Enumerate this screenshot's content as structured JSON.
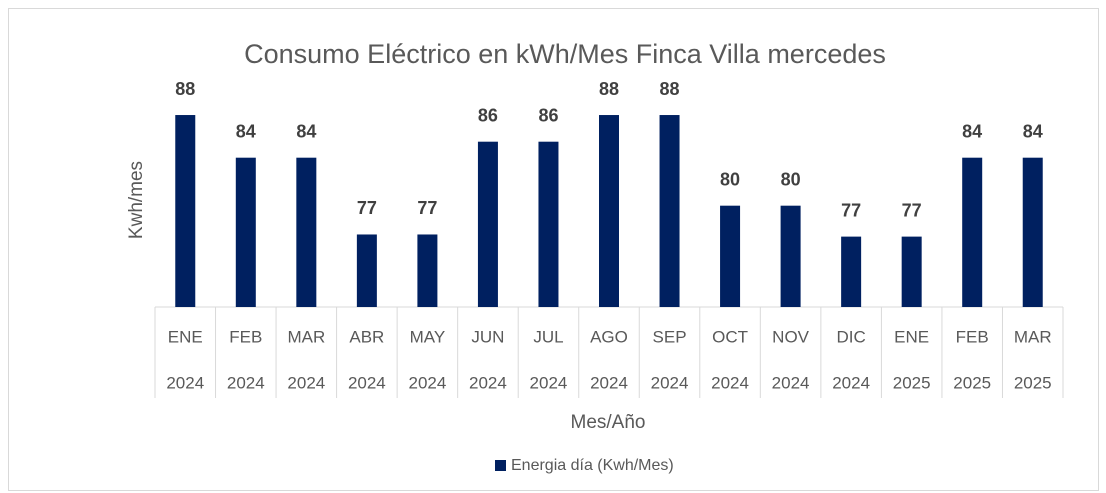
{
  "chart_data": {
    "type": "bar",
    "title": "Consumo  Eléctrico en kWh/Mes  Finca Villa mercedes",
    "x_label": "Mes/Año",
    "y_label": "Kwh/mes",
    "categories": [
      "ENE",
      "FEB",
      "MAR",
      "ABR",
      "MAY",
      "JUN",
      "JUL",
      "AGO",
      "SEP",
      "OCT",
      "NOV",
      "DIC",
      "ENE",
      "FEB",
      "MAR"
    ],
    "category_years": [
      "2024",
      "2024",
      "2024",
      "2024",
      "2024",
      "2024",
      "2024",
      "2024",
      "2024",
      "2024",
      "2024",
      "2024",
      "2025",
      "2025",
      "2025"
    ],
    "series": [
      {
        "name": "Energia día (Kwh/Mes)",
        "color": "#002060",
        "values": [
          88,
          84,
          84,
          76.8,
          76.8,
          85.5,
          85.5,
          88,
          88,
          79.5,
          79.5,
          76.6,
          76.6,
          84,
          84
        ],
        "value_labels": [
          "88",
          "84",
          "84",
          "77",
          "77",
          "86",
          "86",
          "88",
          "88",
          "80",
          "80",
          "77",
          "77",
          "84",
          "84"
        ]
      }
    ],
    "ylim": [
      70,
      88.5
    ],
    "legend": "bottom"
  }
}
